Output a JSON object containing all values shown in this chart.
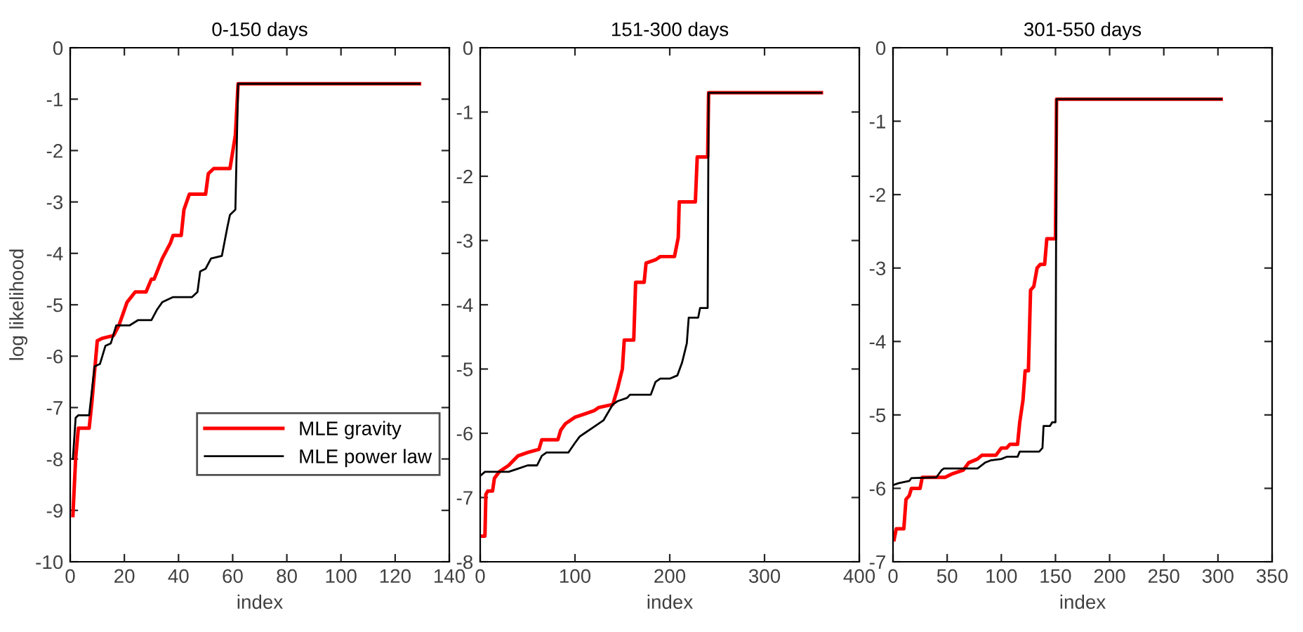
{
  "chart_data": [
    {
      "type": "line",
      "title": "0-150 days",
      "xlabel": "index",
      "ylabel": "log likelihood",
      "xlim": [
        0,
        140
      ],
      "ylim": [
        -10,
        0
      ],
      "xticks": [
        0,
        20,
        40,
        60,
        80,
        100,
        120,
        140
      ],
      "yticks": [
        -10,
        -9,
        -8,
        -7,
        -6,
        -5,
        -4,
        -3,
        -2,
        -1,
        0
      ],
      "grid": false,
      "legend": "lower right",
      "marker": "none",
      "line_style": "solid",
      "series": [
        {
          "name": "MLE gravity",
          "color": "#ff0000",
          "x": [
            1,
            2,
            3,
            7,
            8,
            10,
            12,
            16,
            18,
            20,
            21,
            24,
            28,
            30,
            31,
            34,
            37,
            38,
            41,
            42,
            44,
            50,
            51,
            53,
            59,
            61,
            62,
            129
          ],
          "values": [
            -9.1,
            -8,
            -7.4,
            -7.4,
            -6.9,
            -5.7,
            -5.65,
            -5.6,
            -5.4,
            -5.1,
            -4.95,
            -4.75,
            -4.75,
            -4.5,
            -4.5,
            -4.1,
            -3.8,
            -3.65,
            -3.65,
            -3.15,
            -2.85,
            -2.85,
            -2.45,
            -2.35,
            -2.35,
            -1.7,
            -0.7,
            -0.7
          ]
        },
        {
          "name": "MLE power law",
          "color": "#000000",
          "x": [
            1,
            2,
            3,
            7,
            9,
            11,
            13,
            15,
            17,
            22,
            25,
            30,
            32,
            34,
            38,
            45,
            47,
            48,
            50,
            52,
            56,
            58,
            59,
            61,
            62,
            129
          ],
          "values": [
            -8,
            -7.2,
            -7.15,
            -7.15,
            -6.2,
            -6.15,
            -5.8,
            -5.75,
            -5.4,
            -5.4,
            -5.3,
            -5.3,
            -5.1,
            -4.95,
            -4.85,
            -4.85,
            -4.75,
            -4.35,
            -4.3,
            -4.1,
            -4.05,
            -3.5,
            -3.25,
            -3.15,
            -0.7,
            -0.7
          ]
        }
      ]
    },
    {
      "type": "line",
      "title": "151-300 days",
      "xlabel": "index",
      "xlim": [
        0,
        400
      ],
      "ylim": [
        -8,
        0
      ],
      "xticks": [
        0,
        100,
        200,
        300,
        400
      ],
      "yticks": [
        -8,
        -7,
        -6,
        -5,
        -4,
        -3,
        -2,
        -1,
        0
      ],
      "grid": false,
      "legend": false,
      "marker": "none",
      "line_style": "solid",
      "series": [
        {
          "color": "#ff0000",
          "x": [
            2,
            5,
            6,
            8,
            13,
            15,
            20,
            30,
            40,
            50,
            62,
            65,
            82,
            85,
            90,
            100,
            110,
            120,
            125,
            140,
            145,
            150,
            152,
            162,
            164,
            173,
            175,
            185,
            190,
            205,
            209,
            210,
            227,
            229,
            240,
            241,
            360
          ],
          "values": [
            -7.6,
            -7.6,
            -6.95,
            -6.9,
            -6.9,
            -6.7,
            -6.6,
            -6.5,
            -6.35,
            -6.3,
            -6.25,
            -6.1,
            -6.1,
            -5.95,
            -5.85,
            -5.75,
            -5.7,
            -5.65,
            -5.6,
            -5.55,
            -5.3,
            -5.0,
            -4.55,
            -4.55,
            -3.65,
            -3.65,
            -3.35,
            -3.3,
            -3.25,
            -3.25,
            -2.95,
            -2.4,
            -2.4,
            -1.7,
            -1.7,
            -0.7,
            -0.7
          ]
        },
        {
          "color": "#000000",
          "x": [
            1,
            5,
            30,
            40,
            50,
            60,
            65,
            70,
            93,
            100,
            105,
            110,
            120,
            130,
            140,
            145,
            155,
            158,
            180,
            185,
            190,
            200,
            208,
            213,
            218,
            220,
            230,
            232,
            240,
            241,
            360
          ],
          "values": [
            -6.65,
            -6.6,
            -6.6,
            -6.55,
            -6.5,
            -6.5,
            -6.35,
            -6.3,
            -6.3,
            -6.15,
            -6.05,
            -6.0,
            -5.9,
            -5.8,
            -5.55,
            -5.5,
            -5.45,
            -5.4,
            -5.4,
            -5.2,
            -5.15,
            -5.15,
            -5.1,
            -4.9,
            -4.6,
            -4.2,
            -4.2,
            -4.05,
            -4.05,
            -0.7,
            -0.7
          ]
        }
      ]
    },
    {
      "type": "line",
      "title": "301-550 days",
      "xlabel": "index",
      "xlim": [
        0,
        350
      ],
      "ylim": [
        -7,
        0
      ],
      "xticks": [
        0,
        50,
        100,
        150,
        200,
        250,
        300,
        350
      ],
      "yticks": [
        -7,
        -6,
        -5,
        -4,
        -3,
        -2,
        -1,
        0
      ],
      "grid": false,
      "legend": false,
      "marker": "none",
      "line_style": "solid",
      "series": [
        {
          "color": "#ff0000",
          "x": [
            1,
            3,
            10,
            12,
            15,
            17,
            25,
            27,
            48,
            55,
            65,
            70,
            78,
            82,
            95,
            100,
            105,
            108,
            115,
            117,
            120,
            122,
            125,
            127,
            130,
            133,
            136,
            140,
            142,
            150,
            151,
            303
          ],
          "values": [
            -6.7,
            -6.55,
            -6.55,
            -6.15,
            -6.1,
            -6.0,
            -6.0,
            -5.85,
            -5.85,
            -5.8,
            -5.75,
            -5.65,
            -5.6,
            -5.55,
            -5.55,
            -5.45,
            -5.45,
            -5.4,
            -5.4,
            -5.1,
            -4.8,
            -4.4,
            -4.4,
            -3.3,
            -3.25,
            -3.0,
            -2.95,
            -2.95,
            -2.6,
            -2.6,
            -0.7,
            -0.7
          ]
        },
        {
          "color": "#000000",
          "x": [
            1,
            5,
            15,
            17,
            40,
            45,
            47,
            78,
            85,
            90,
            100,
            105,
            115,
            117,
            135,
            138,
            139,
            145,
            147,
            150,
            151,
            303
          ],
          "values": [
            -5.95,
            -5.93,
            -5.9,
            -5.86,
            -5.85,
            -5.75,
            -5.73,
            -5.73,
            -5.65,
            -5.62,
            -5.6,
            -5.57,
            -5.57,
            -5.5,
            -5.5,
            -5.45,
            -5.15,
            -5.15,
            -5.1,
            -5.1,
            -0.7,
            -0.7
          ]
        }
      ]
    }
  ]
}
